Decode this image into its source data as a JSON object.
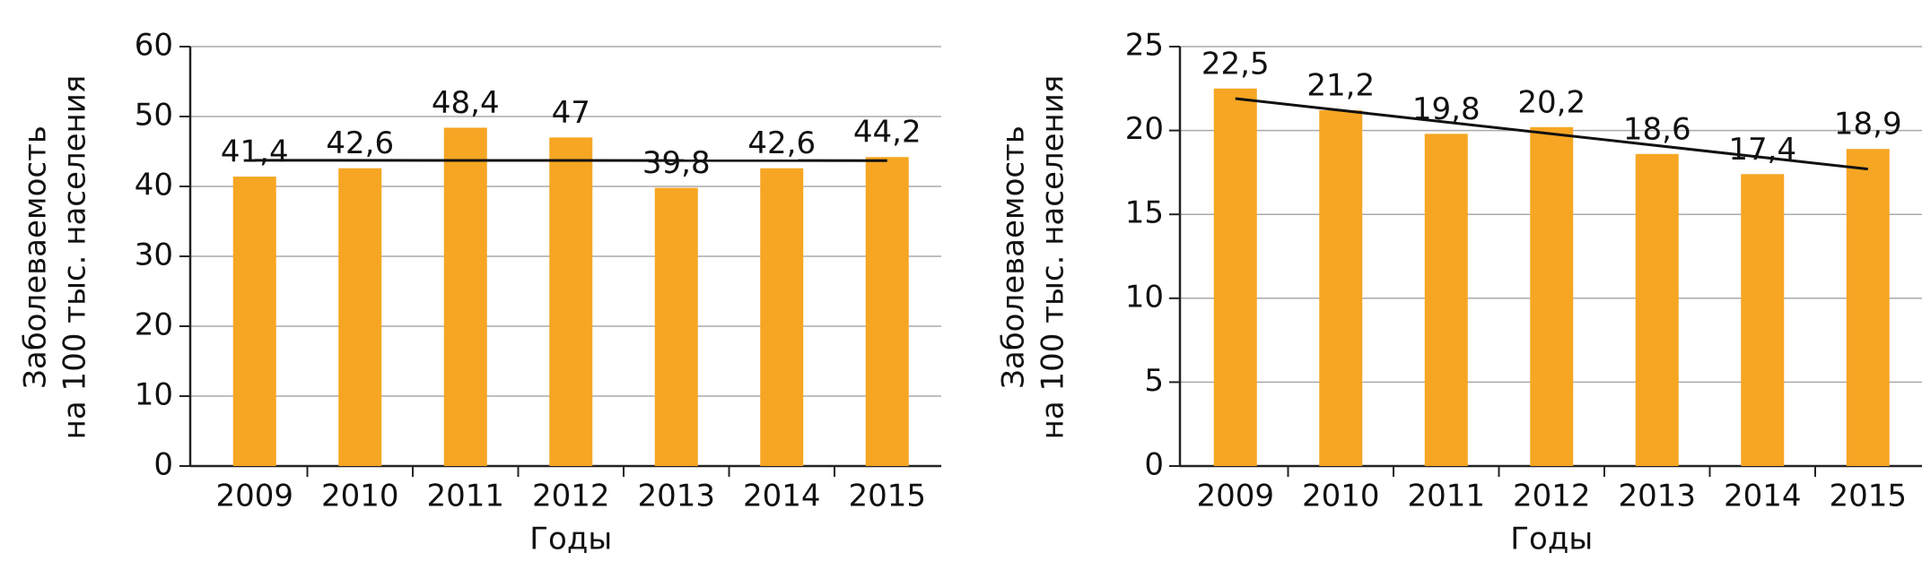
{
  "chart_data": [
    {
      "type": "bar",
      "x_label": "Годы",
      "y_label": [
        "Заболеваемость",
        "на 100 тыс. населения"
      ],
      "categories": [
        "2009",
        "2010",
        "2011",
        "2012",
        "2013",
        "2014",
        "2015"
      ],
      "values": [
        41.4,
        42.6,
        48.4,
        47,
        39.8,
        42.6,
        44.2
      ],
      "value_labels": [
        "41,4",
        "42,6",
        "48,4",
        "47",
        "39,8",
        "42,6",
        "44,2"
      ],
      "color": "#f6a623",
      "ylim": [
        0,
        60
      ],
      "yticks": [
        0,
        10,
        20,
        30,
        40,
        50,
        60
      ],
      "grid": true,
      "trendline": "linear"
    },
    {
      "type": "bar",
      "x_label": "Годы",
      "y_label": [
        "Заболеваемость",
        "на 100 тыс. населения"
      ],
      "categories": [
        "2009",
        "2010",
        "2011",
        "2012",
        "2013",
        "2014",
        "2015"
      ],
      "values": [
        22.5,
        21.2,
        19.8,
        20.2,
        18.6,
        17.4,
        18.9
      ],
      "value_labels": [
        "22,5",
        "21,2",
        "19,8",
        "20,2",
        "18,6",
        "17,4",
        "18,9"
      ],
      "color": "#f6a623",
      "ylim": [
        0,
        25
      ],
      "yticks": [
        0,
        5,
        10,
        15,
        20,
        25
      ],
      "grid": true,
      "trendline": "linear"
    }
  ]
}
